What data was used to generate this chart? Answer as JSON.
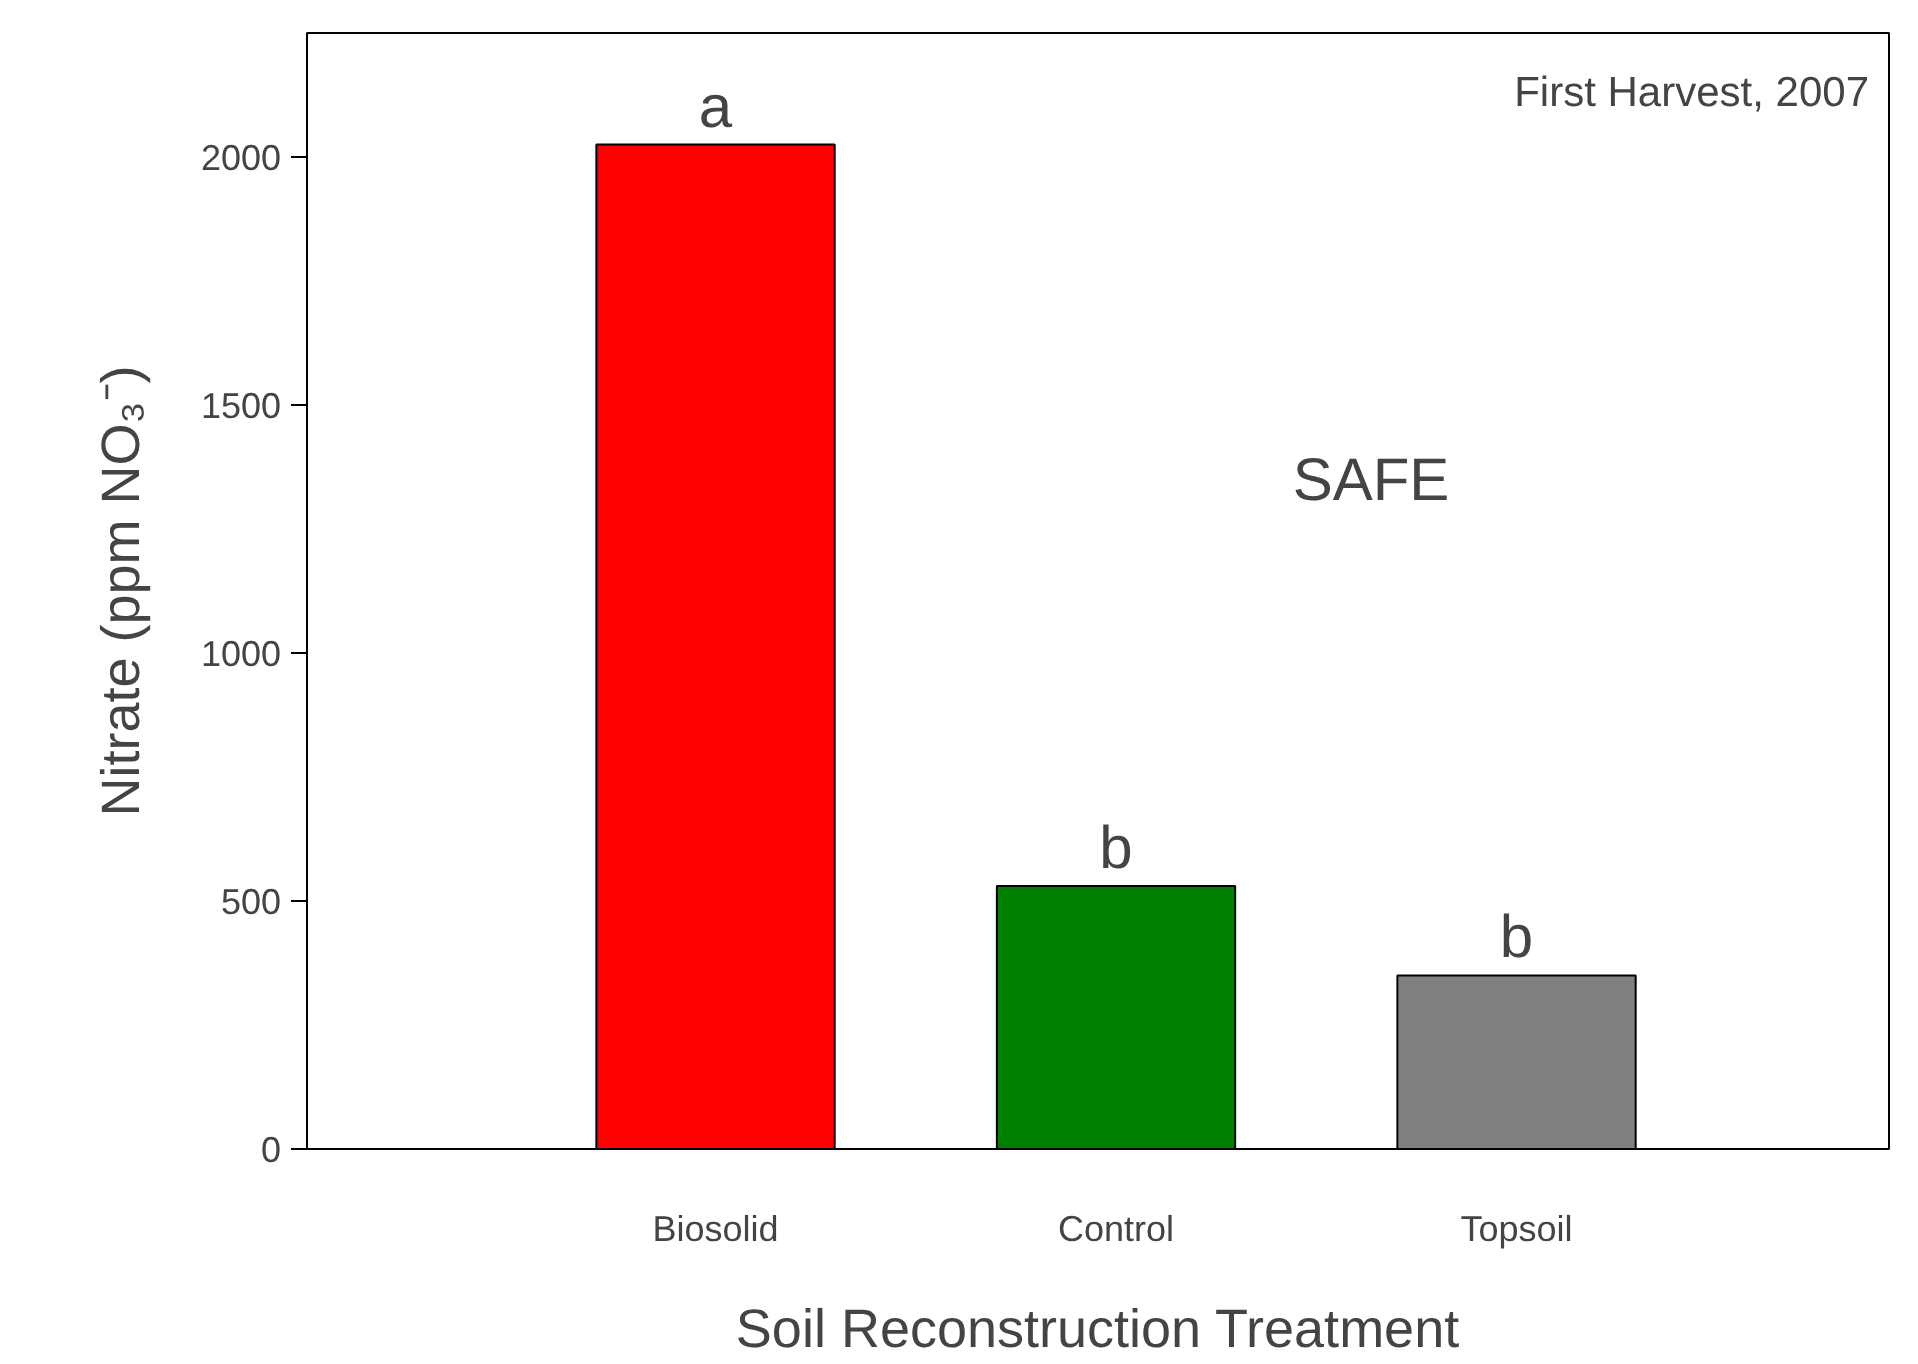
{
  "chart_data": {
    "type": "bar",
    "xlabel": "Soil Reconstruction Treatment",
    "ylabel": "Nitrate (ppm NO₃⁻)",
    "categories": [
      "Biosolid",
      "Control",
      "Topsoil"
    ],
    "values": [
      2025,
      530,
      350
    ],
    "colors": [
      "#ff0000",
      "#008000",
      "#808080"
    ],
    "ylim": [
      0,
      2250
    ],
    "yticks": [
      0,
      500,
      1000,
      1500,
      2000
    ],
    "grid": false,
    "annotations": [
      {
        "text": "a",
        "x": "Biosolid",
        "y": 2025
      },
      {
        "text": "b",
        "x": "Control",
        "y": 530
      },
      {
        "text": "b",
        "x": "Topsoil",
        "y": 350
      },
      "First Harvest, 2007",
      "SAFE"
    ]
  }
}
